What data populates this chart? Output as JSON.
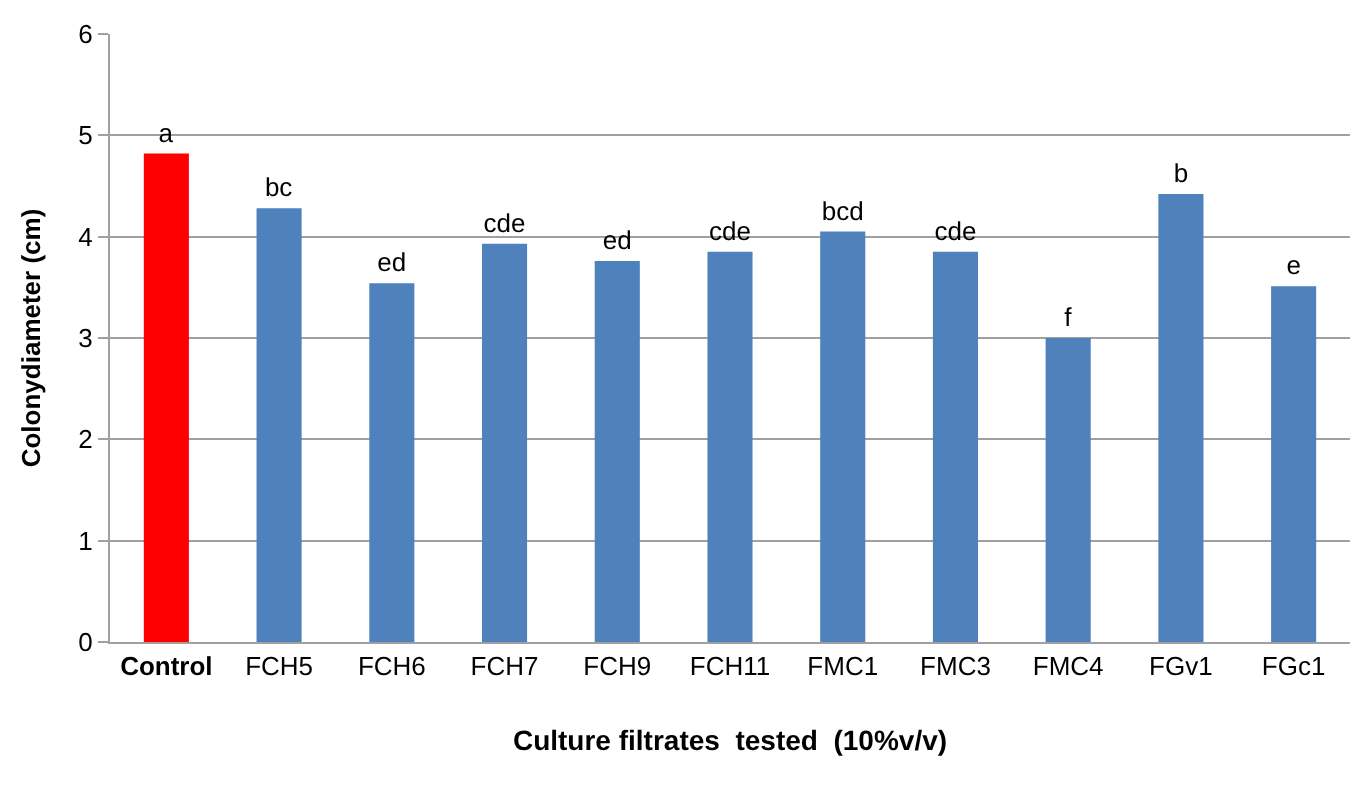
{
  "chart_data": {
    "type": "bar",
    "xlabel": "Culture filtrates  tested  (10%v/v)",
    "ylabel": "Colonydiameter (cm)",
    "categories": [
      "Control",
      "FCH5",
      "FCH6",
      "FCH7",
      "FCH9",
      "FCH11",
      "FMC1",
      "FMC3",
      "FMC4",
      "FGv1",
      "FGc1"
    ],
    "values": [
      4.82,
      4.28,
      3.54,
      3.93,
      3.76,
      3.85,
      4.05,
      3.85,
      3.0,
      4.42,
      3.51
    ],
    "colors": [
      "#ff0000",
      "#4f81bd",
      "#4f81bd",
      "#4f81bd",
      "#4f81bd",
      "#4f81bd",
      "#4f81bd",
      "#4f81bd",
      "#4f81bd",
      "#4f81bd",
      "#4f81bd"
    ],
    "value_labels": [
      "a",
      "bc",
      "ed",
      "cde",
      "ed",
      "cde",
      "bcd",
      "cde",
      "f",
      "b",
      "e"
    ],
    "ylim": [
      0,
      6
    ],
    "yticks": [
      0,
      1,
      2,
      3,
      4,
      5,
      6
    ],
    "grid": "y"
  }
}
